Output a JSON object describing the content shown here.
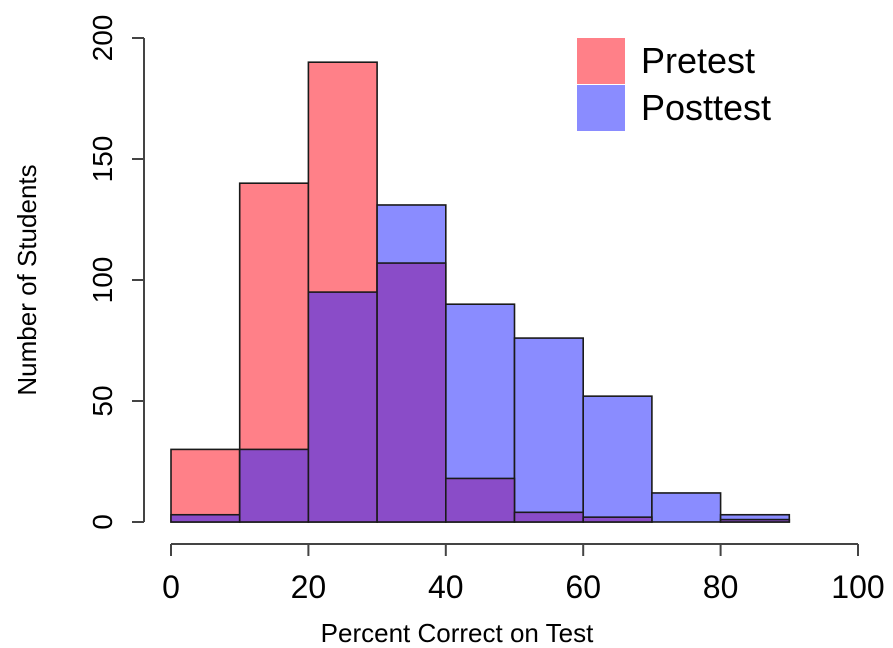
{
  "chart_data": {
    "type": "bar",
    "subtype": "overlapping-histogram",
    "title": "",
    "xlabel": "Percent Correct on Test",
    "ylabel": "Number of Students",
    "xlim": [
      0,
      100
    ],
    "ylim": [
      0,
      200
    ],
    "x_ticks": [
      0,
      20,
      40,
      60,
      80,
      100
    ],
    "y_ticks": [
      0,
      50,
      100,
      150,
      200
    ],
    "bin_edges": [
      0,
      10,
      20,
      30,
      40,
      50,
      60,
      70,
      80,
      90
    ],
    "series": [
      {
        "name": "Pretest",
        "color": "#ff8088",
        "values": [
          30,
          140,
          190,
          107,
          18,
          4,
          2,
          0,
          1
        ]
      },
      {
        "name": "Posttest",
        "color": "#8a8cff",
        "values": [
          3,
          30,
          95,
          131,
          90,
          76,
          52,
          12,
          3
        ]
      }
    ],
    "overlap_color": "#8a4cc8",
    "grid": false,
    "legend_position": "top-right"
  }
}
